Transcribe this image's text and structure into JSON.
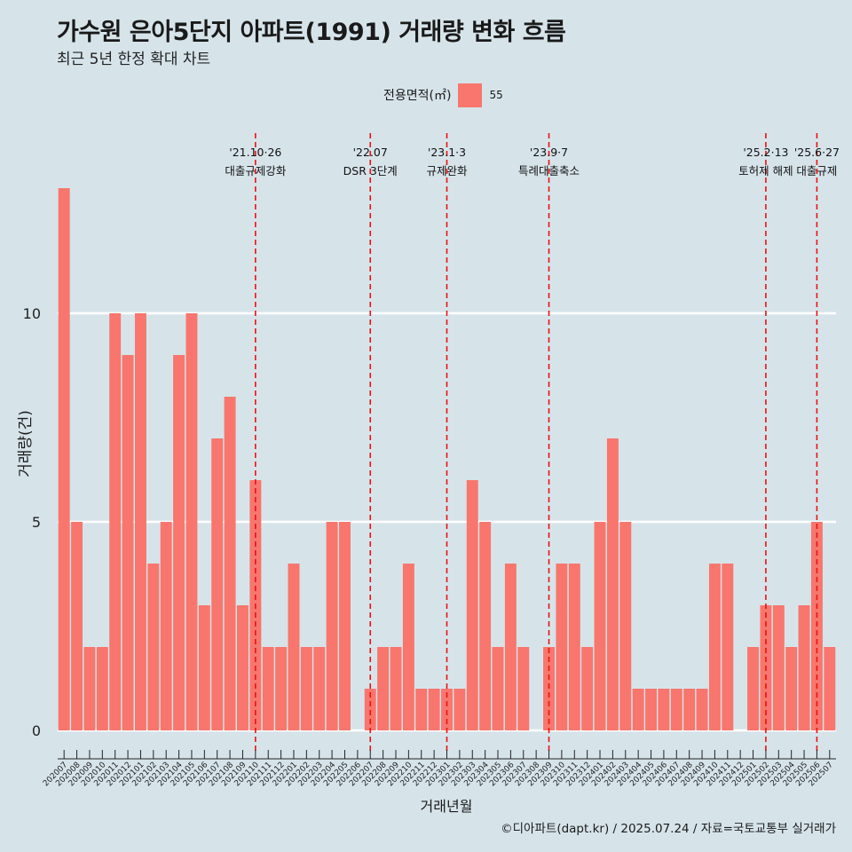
{
  "title": "가수원 은아5단지 아파트(1991) 거래량 변화 흐름",
  "subtitle": "최근 5년 한정 확대 차트",
  "legend": {
    "title": "전용면적(㎡)",
    "label": "55"
  },
  "caption": "©디아파트(dapt.kr) / 2025.07.24 / 자료=국토교통부 실거래가",
  "colors": {
    "bar": "#f8766d",
    "background": "#d6e4ea",
    "grid": "#ffffff",
    "event_line": "#ee1111"
  },
  "chart_data": {
    "type": "bar",
    "xlabel": "거래년월",
    "ylabel": "거래량(건)",
    "ylim": [
      0,
      13
    ],
    "yticks": [
      0,
      5,
      10
    ],
    "grid": "horizontal",
    "legend_position": "top",
    "categories": [
      "202007",
      "202008",
      "202009",
      "202010",
      "202011",
      "202012",
      "202101",
      "202102",
      "202103",
      "202104",
      "202105",
      "202106",
      "202107",
      "202108",
      "202109",
      "202110",
      "202111",
      "202112",
      "202201",
      "202202",
      "202203",
      "202204",
      "202205",
      "202206",
      "202207",
      "202208",
      "202209",
      "202210",
      "202211",
      "202212",
      "202301",
      "202302",
      "202303",
      "202304",
      "202305",
      "202306",
      "202307",
      "202308",
      "202309",
      "202310",
      "202311",
      "202312",
      "202401",
      "202402",
      "202403",
      "202404",
      "202405",
      "202406",
      "202407",
      "202408",
      "202409",
      "202410",
      "202411",
      "202412",
      "202501",
      "202502",
      "202503",
      "202504",
      "202505",
      "202506",
      "202507"
    ],
    "series": [
      {
        "name": "55",
        "values": [
          13,
          5,
          2,
          2,
          10,
          9,
          10,
          4,
          5,
          9,
          10,
          3,
          7,
          8,
          3,
          6,
          2,
          2,
          4,
          2,
          2,
          5,
          5,
          0,
          1,
          2,
          2,
          4,
          1,
          1,
          1,
          1,
          6,
          5,
          2,
          4,
          2,
          0,
          2,
          4,
          4,
          2,
          5,
          7,
          5,
          1,
          1,
          1,
          1,
          1,
          1,
          4,
          4,
          0,
          2,
          3,
          3,
          2,
          3,
          5,
          2
        ]
      }
    ],
    "annotations": [
      {
        "x": "202110",
        "date": "'21.10·26",
        "label": "대출규제강화"
      },
      {
        "x": "202207",
        "date": "'22.07",
        "label": "DSR 3단계"
      },
      {
        "x": "202301",
        "date": "'23.1·3",
        "label": "규제완화"
      },
      {
        "x": "202309",
        "date": "'23.9·7",
        "label": "특례대출축소"
      },
      {
        "x": "202502",
        "date": "'25.2·13",
        "label": "토허제 해제"
      },
      {
        "x": "202506",
        "date": "'25.6·27",
        "label": "대출규제"
      }
    ]
  }
}
